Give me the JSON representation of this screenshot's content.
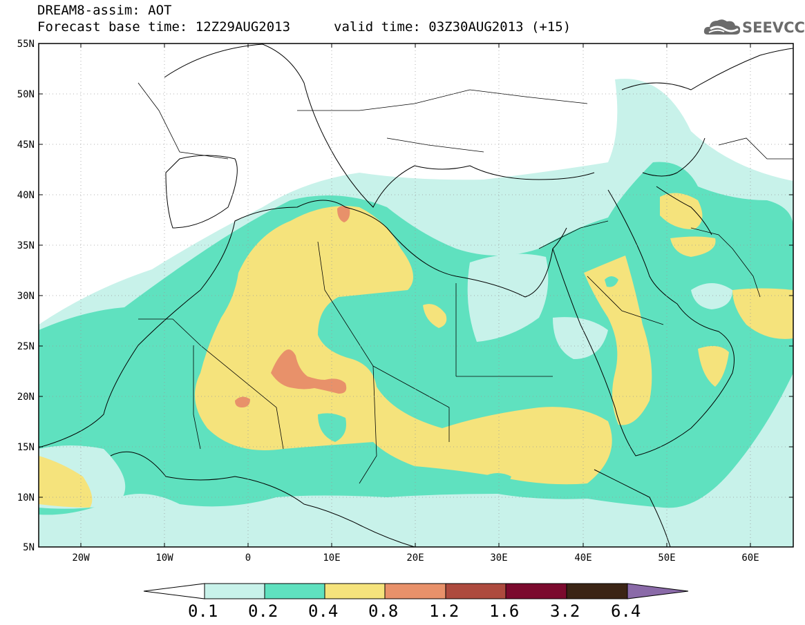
{
  "title": {
    "line1": "DREAM8-assim: AOT",
    "line2": "Forecast base time: 12Z29AUG2013",
    "valid": "valid time: 03Z30AUG2013 (+15)"
  },
  "logo": {
    "text": "SEEVCCC",
    "icon": "cloud-icon"
  },
  "map_data": {
    "type": "contour-map",
    "variable": "AOT",
    "lon_range": [
      -25,
      65
    ],
    "lat_range": [
      5,
      55
    ],
    "lat_ticks": [
      "55N",
      "50N",
      "45N",
      "40N",
      "35N",
      "30N",
      "25N",
      "20N",
      "15N",
      "10N",
      "5N"
    ],
    "lon_ticks": [
      "20W",
      "10W",
      "0",
      "10E",
      "20E",
      "30E",
      "40E",
      "50E",
      "60E"
    ],
    "grid": "dotted",
    "levels": [
      0.1,
      0.2,
      0.4,
      0.8,
      1.2,
      1.6,
      3.2,
      6.4
    ]
  },
  "legend": {
    "labels": [
      "0.1",
      "0.2",
      "0.4",
      "0.8",
      "1.2",
      "1.6",
      "3.2",
      "6.4"
    ],
    "colors": [
      "#c8f2ea",
      "#5fe1bf",
      "#f5e37c",
      "#e8916a",
      "#ad4a3e",
      "#7b0a2e",
      "#3b2415",
      "#8a6aa8"
    ],
    "under_color": "#ffffff",
    "over_color": "#8a6aa8"
  }
}
